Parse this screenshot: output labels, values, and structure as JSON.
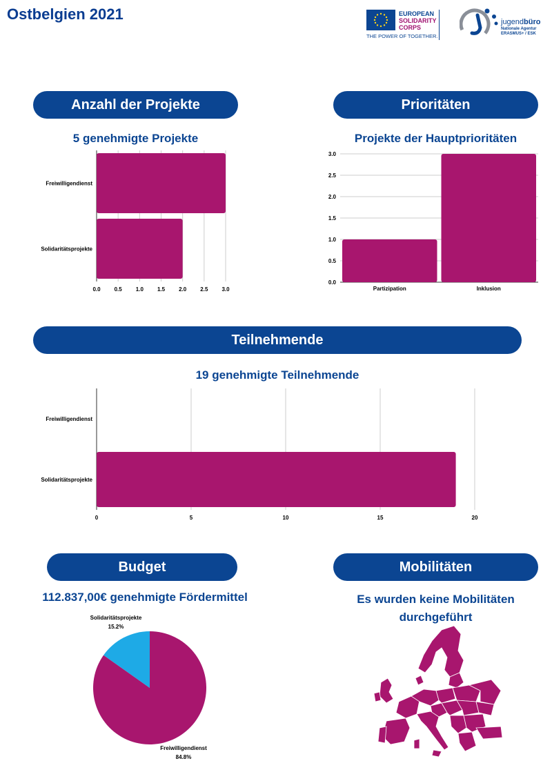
{
  "page_title": "Ostbelgien 2021",
  "logos": {
    "esc_line1": "EUROPEAN",
    "esc_line2": "SOLIDARITY",
    "esc_line3": "CORPS",
    "esc_tagline": "THE POWER OF TOGETHER.",
    "jb_name_light": "jugend",
    "jb_name_bold": "büro",
    "jb_sub1": "Nationale Agentur",
    "jb_sub2": "ERASMUS+ / ESK"
  },
  "sections": {
    "projects_header": "Anzahl der Projekte",
    "priorities_header": "Prioritäten",
    "participants_header": "Teilnehmende",
    "budget_header": "Budget",
    "mobility_header": "Mobilitäten"
  },
  "subtitles": {
    "projects": "5 genehmigte Projekte",
    "priorities": "Projekte der Hauptprioritäten",
    "participants": "19 genehmigte Teilnehmende",
    "budget": "112.837,00€ genehmigte Fördermittel",
    "mobility_line1": "Es wurden keine Mobilitäten",
    "mobility_line2": "durchgeführt"
  },
  "colors": {
    "bar": "#a8166e",
    "pie_secondary": "#1eaae6",
    "navy": "#0b4592",
    "grid": "#cccccc"
  },
  "icons": {
    "map": "europe-map-icon"
  },
  "chart_data": [
    {
      "type": "bar",
      "orientation": "horizontal",
      "categories": [
        "Freiwilligendienst",
        "Solidaritätsprojekte"
      ],
      "values": [
        3,
        2
      ],
      "xlim": [
        0,
        3
      ],
      "xticks": [
        "0.0",
        "0.5",
        "1.0",
        "1.5",
        "2.0",
        "2.5",
        "3.0"
      ],
      "grid": true
    },
    {
      "type": "bar",
      "orientation": "vertical",
      "categories": [
        "Partizipation",
        "Inklusion"
      ],
      "values": [
        1,
        3
      ],
      "ylim": [
        0,
        3
      ],
      "yticks": [
        "0.0",
        "0.5",
        "1.0",
        "1.5",
        "2.0",
        "2.5",
        "3.0"
      ],
      "grid": true
    },
    {
      "type": "bar",
      "orientation": "horizontal",
      "categories": [
        "Freiwilligendienst",
        "Solidaritätsprojekte"
      ],
      "values": [
        0,
        19
      ],
      "xlim": [
        0,
        20
      ],
      "xticks": [
        "0",
        "5",
        "10",
        "15",
        "20"
      ],
      "grid": true
    },
    {
      "type": "pie",
      "labels": [
        "Freiwilligendienst",
        "Solidaritätsprojekte"
      ],
      "values": [
        84.8,
        15.2
      ],
      "value_labels": [
        "84.8%",
        "15.2%"
      ]
    }
  ]
}
